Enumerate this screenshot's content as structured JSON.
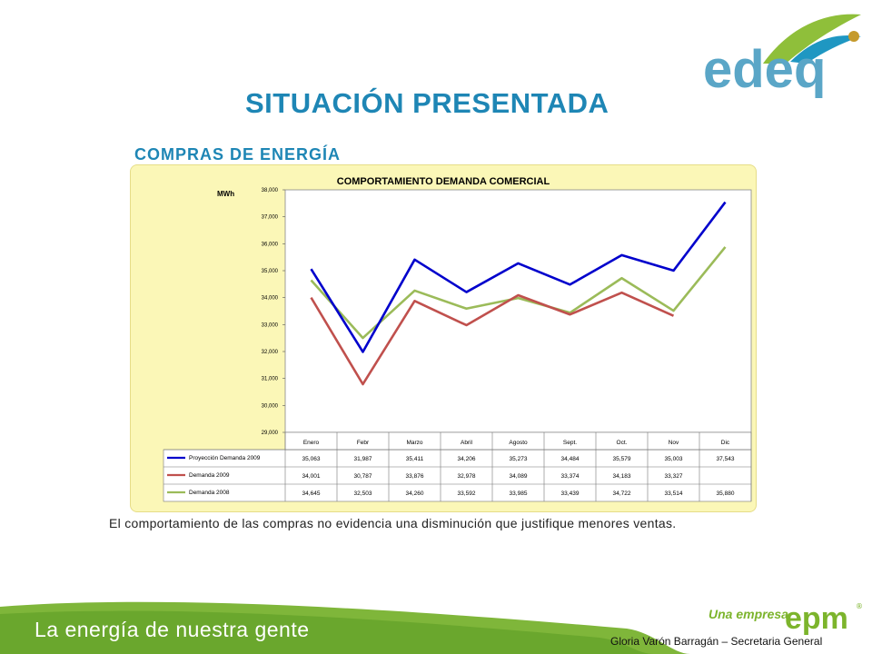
{
  "header": {
    "logo_text": "edeq",
    "title": "SITUACIÓN PRESENTADA",
    "subtitle": "COMPRAS DE ENERGÍA"
  },
  "caption": "El comportamiento de las compras no evidencia una disminución que justifique menores ventas.",
  "footer": {
    "tagline": "La energía de nuestra gente",
    "una_empresa": "Una empresa",
    "epm_logo_text": "epm",
    "author": "Gloria Varón Barragán – Secretaria General"
  },
  "colors": {
    "title": "#1e86b5",
    "chart_bg": "#fbf7b7",
    "proyeccion": "#0000cc",
    "demanda_2009": "#c0504d",
    "demanda_2008": "#9bbb59",
    "footer_green": "#7cb42c"
  },
  "chart_data": {
    "type": "line",
    "title": "COMPORTAMIENTO DEMANDA COMERCIAL",
    "ylabel": "MWh",
    "xlabel": "",
    "ylim": [
      29000,
      38000
    ],
    "yticks": [
      "29,000",
      "30,000",
      "31,000",
      "32,000",
      "33,000",
      "34,000",
      "35,000",
      "36,000",
      "37,000",
      "38,000"
    ],
    "categories": [
      "Enero",
      "Febr",
      "Marzo",
      "Abril",
      "Agosto",
      "Sept.",
      "Oct.",
      "Nov",
      "Dic"
    ],
    "series": [
      {
        "name": "Proyección Demanda 2009",
        "color": "#0000cc",
        "values": [
          35063,
          31987,
          35411,
          34206,
          35273,
          34484,
          35579,
          35003,
          37543
        ],
        "labels": [
          "35,063",
          "31,987",
          "35,411",
          "34,206",
          "35,273",
          "34,484",
          "35,579",
          "35,003",
          "37,543"
        ]
      },
      {
        "name": "Demanda 2009",
        "color": "#c0504d",
        "values": [
          34001,
          30787,
          33876,
          32978,
          34089,
          33374,
          34183,
          33327,
          null
        ],
        "labels": [
          "34,001",
          "30,787",
          "33,876",
          "32,978",
          "34,089",
          "33,374",
          "34,183",
          "33,327",
          ""
        ]
      },
      {
        "name": "Demanda 2008",
        "color": "#9bbb59",
        "values": [
          34645,
          32503,
          34260,
          33592,
          33985,
          33439,
          34722,
          33514,
          35880
        ],
        "labels": [
          "34,645",
          "32,503",
          "34,260",
          "33,592",
          "33,985",
          "33,439",
          "34,722",
          "33,514",
          "35,880"
        ]
      }
    ]
  }
}
